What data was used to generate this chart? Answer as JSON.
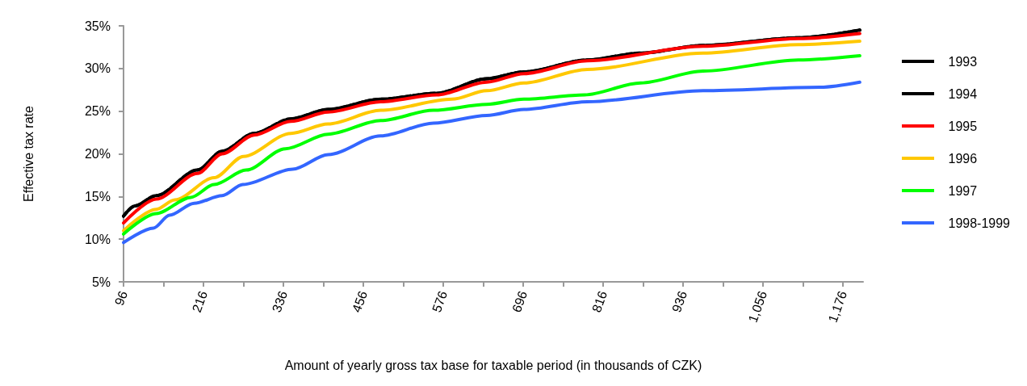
{
  "chart_data": {
    "type": "line",
    "xlabel": "Amount of yearly gross tax base for taxable period (in thousands of CZK)",
    "ylabel": "Effective tax rate",
    "xlim": [
      96,
      1206
    ],
    "xticks": [
      96,
      {
        "value": 156,
        "label": null
      },
      216,
      {
        "value": 276,
        "label": null
      },
      336,
      {
        "value": 396,
        "label": null
      },
      456,
      {
        "value": 516,
        "label": null
      },
      576,
      {
        "value": 636,
        "label": null
      },
      696,
      {
        "value": 756,
        "label": null
      },
      816,
      {
        "value": 876,
        "label": null
      },
      936,
      {
        "value": 996,
        "label": null
      },
      {
        "value": 1056,
        "label": "1,056"
      },
      {
        "value": 1116,
        "label": null
      },
      {
        "value": 1176,
        "label": "1,176"
      }
    ],
    "ylim": [
      5,
      35
    ],
    "yticks": [
      {
        "value": 5,
        "label": "5%"
      },
      {
        "value": 10,
        "label": "10%"
      },
      {
        "value": 15,
        "label": "15%"
      },
      {
        "value": 20,
        "label": "20%"
      },
      {
        "value": 25,
        "label": "25%"
      },
      {
        "value": 30,
        "label": "30%"
      },
      {
        "value": 35,
        "label": "35%"
      }
    ],
    "grid": false,
    "legend": "right",
    "marker": "none",
    "series": [
      {
        "name": "1993",
        "color": "#000000",
        "line_style": "solid",
        "x": [
          96,
          113,
          145,
          207,
          244,
          292,
          347,
          403,
          482,
          566,
          641,
          697,
          792,
          872,
          966,
          1109,
          1201
        ],
        "values": [
          12.7,
          13.9,
          15.1,
          18.1,
          20.3,
          22.4,
          24.1,
          25.2,
          26.4,
          27.1,
          28.8,
          29.6,
          31.0,
          31.8,
          32.7,
          33.6,
          34.5
        ]
      },
      {
        "name": "1994",
        "color": "#000000",
        "line_style": "dashed",
        "x": [
          96,
          113,
          145,
          207,
          244,
          292,
          347,
          403,
          482,
          566,
          641,
          697,
          792,
          872,
          966,
          1109,
          1201
        ],
        "values": [
          12.7,
          13.9,
          15.1,
          18.1,
          20.3,
          22.4,
          24.1,
          25.2,
          26.4,
          27.1,
          28.8,
          29.6,
          31.0,
          31.8,
          32.7,
          33.6,
          34.5
        ]
      },
      {
        "name": "1995",
        "color": "#ff0000",
        "line_style": "solid",
        "x": [
          96,
          145,
          207,
          244,
          292,
          347,
          403,
          482,
          566,
          641,
          697,
          792,
          966,
          1109,
          1201
        ],
        "values": [
          11.9,
          14.7,
          17.7,
          20.0,
          22.2,
          23.8,
          24.9,
          26.1,
          26.9,
          28.4,
          29.4,
          30.9,
          32.6,
          33.5,
          34.1
        ]
      },
      {
        "name": "1996",
        "color": "#ffc800",
        "line_style": "solid",
        "x": [
          96,
          145,
          173,
          232,
          276,
          347,
          403,
          482,
          589,
          641,
          697,
          792,
          966,
          1109,
          1201
        ],
        "values": [
          11.0,
          13.5,
          14.6,
          17.2,
          19.7,
          22.4,
          23.5,
          25.1,
          26.4,
          27.4,
          28.3,
          29.9,
          31.8,
          32.8,
          33.2
        ]
      },
      {
        "name": "1997",
        "color": "#00ff00",
        "line_style": "solid",
        "x": [
          96,
          145,
          197,
          232,
          280,
          339,
          403,
          482,
          561,
          641,
          697,
          788,
          872,
          966,
          1109,
          1201
        ],
        "values": [
          10.6,
          13.0,
          14.9,
          16.4,
          18.1,
          20.6,
          22.3,
          23.9,
          25.1,
          25.8,
          26.4,
          26.9,
          28.3,
          29.7,
          31.0,
          31.5
        ]
      },
      {
        "name": "1998-1999",
        "color": "#3366ff",
        "line_style": "solid",
        "x": [
          96,
          141,
          165,
          202,
          244,
          275,
          350,
          403,
          482,
          561,
          641,
          697,
          792,
          966,
          1141,
          1201
        ],
        "values": [
          9.6,
          11.3,
          12.8,
          14.2,
          15.1,
          16.4,
          18.2,
          19.9,
          22.1,
          23.6,
          24.5,
          25.2,
          26.1,
          27.4,
          27.8,
          28.4
        ]
      }
    ]
  }
}
